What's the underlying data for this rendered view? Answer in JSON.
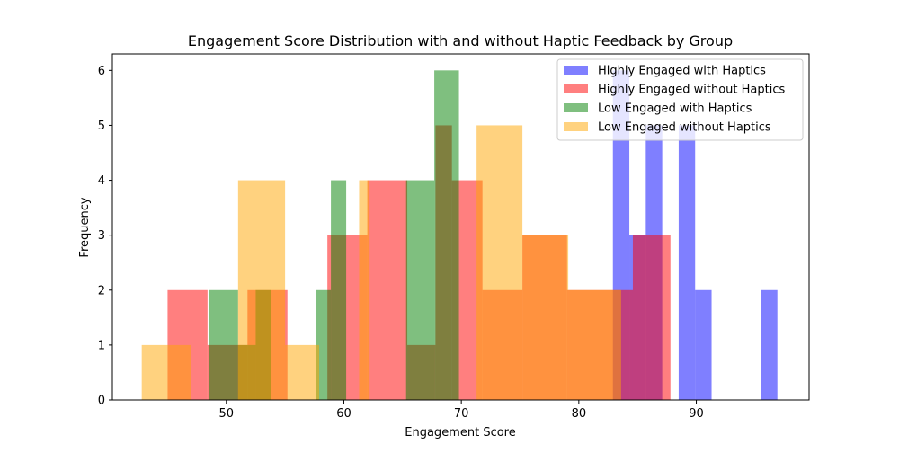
{
  "chart_data": {
    "type": "histogram",
    "title": "Engagement Score Distribution with and without Haptic Feedback by Group",
    "xlabel": "Engagement Score",
    "ylabel": "Frequency",
    "xlim": [
      40.3,
      99.6
    ],
    "ylim": [
      0,
      6.3
    ],
    "x_ticks": [
      50,
      60,
      70,
      80,
      90
    ],
    "y_ticks": [
      0,
      1,
      2,
      3,
      4,
      5,
      6
    ],
    "grid": false,
    "legend_position": "top-right",
    "series": [
      {
        "name": "Highly Engaged with Haptics",
        "color": "#0000ff",
        "alpha": 0.5,
        "bins": [
          [
            82.9,
            84.3,
            6
          ],
          [
            84.3,
            85.7,
            3
          ],
          [
            85.7,
            87.1,
            5
          ],
          [
            87.1,
            88.5,
            0
          ],
          [
            88.5,
            89.9,
            5
          ],
          [
            89.9,
            91.3,
            2
          ],
          [
            91.3,
            95.5,
            0
          ],
          [
            95.5,
            96.9,
            2
          ]
        ]
      },
      {
        "name": "Highly Engaged without Haptics",
        "color": "#ff0000",
        "alpha": 0.5,
        "bins": [
          [
            45.0,
            48.4,
            2
          ],
          [
            48.4,
            51.8,
            1
          ],
          [
            51.8,
            55.2,
            2
          ],
          [
            55.2,
            58.6,
            0
          ],
          [
            58.6,
            62.0,
            3
          ],
          [
            62.0,
            65.4,
            4
          ],
          [
            65.4,
            67.8,
            1
          ],
          [
            67.8,
            69.2,
            5
          ],
          [
            69.2,
            71.8,
            4
          ],
          [
            71.8,
            75.2,
            2
          ],
          [
            75.2,
            79.0,
            3
          ],
          [
            79.0,
            84.6,
            2
          ],
          [
            84.6,
            87.8,
            3
          ]
        ]
      },
      {
        "name": "Low Engaged with Haptics",
        "color": "#008000",
        "alpha": 0.5,
        "bins": [
          [
            48.5,
            51.0,
            2
          ],
          [
            51.0,
            52.5,
            1
          ],
          [
            52.5,
            53.8,
            2
          ],
          [
            53.8,
            57.6,
            0
          ],
          [
            57.6,
            58.9,
            2
          ],
          [
            58.9,
            60.2,
            4
          ],
          [
            60.2,
            65.3,
            0
          ],
          [
            65.3,
            67.7,
            4
          ],
          [
            67.7,
            69.8,
            6
          ]
        ]
      },
      {
        "name": "Low Engaged without Haptics",
        "color": "#ffa500",
        "alpha": 0.5,
        "bins": [
          [
            42.8,
            45.0,
            1
          ],
          [
            45.0,
            47.0,
            1
          ],
          [
            47.0,
            51.0,
            0
          ],
          [
            51.0,
            55.0,
            4
          ],
          [
            55.0,
            57.9,
            1
          ],
          [
            57.9,
            61.3,
            0
          ],
          [
            61.3,
            62.2,
            4
          ],
          [
            62.2,
            63.4,
            0
          ],
          [
            63.4,
            69.7,
            0
          ],
          [
            69.7,
            71.3,
            0
          ],
          [
            71.3,
            75.2,
            5
          ],
          [
            75.2,
            79.1,
            3
          ],
          [
            79.1,
            83.6,
            2
          ]
        ]
      }
    ]
  }
}
